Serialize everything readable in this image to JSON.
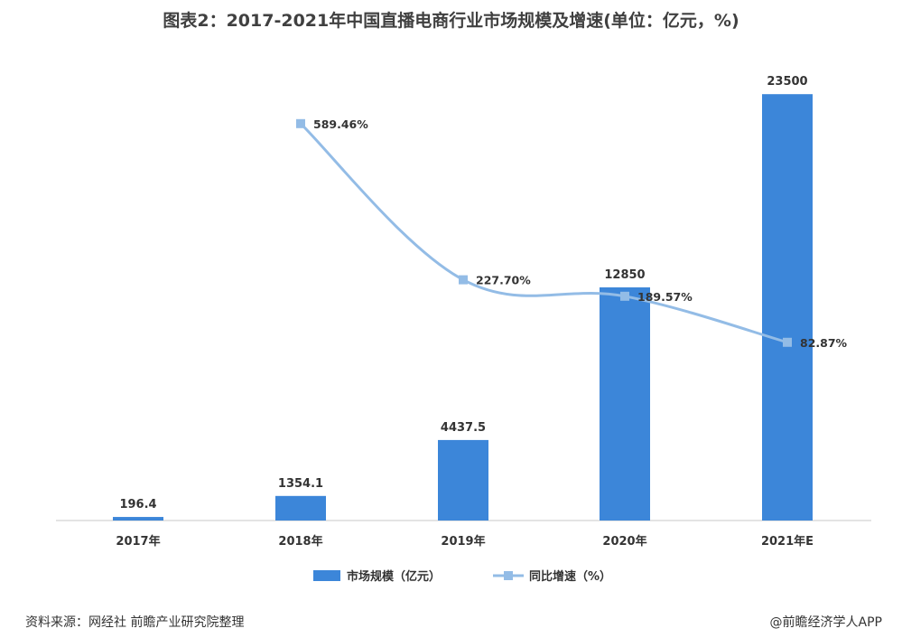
{
  "title": "图表2：2017-2021年中国直播电商行业市场规模及增速(单位：亿元，%)",
  "chart_data": {
    "type": "bar",
    "categories": [
      "2017年",
      "2018年",
      "2019年",
      "2020年",
      "2021年E"
    ],
    "series": [
      {
        "name": "市场规模（亿元）",
        "type": "bar",
        "axis": "left",
        "values": [
          196.4,
          1354.1,
          4437.5,
          12850,
          23500
        ],
        "labels": [
          "196.4",
          "1354.1",
          "4437.5",
          "12850",
          "23500"
        ],
        "color": "#3c86d9"
      },
      {
        "name": "同比增速（%）",
        "type": "line",
        "axis": "right",
        "values": [
          null,
          589.46,
          227.7,
          189.57,
          82.87
        ],
        "labels": [
          "",
          "589.46%",
          "227.70%",
          "189.57%",
          "82.87%"
        ],
        "color": "#93bce6"
      }
    ],
    "ylim_left": [
      0,
      26000
    ],
    "ylim_right": [
      -330,
      700
    ],
    "legend_position": "bottom"
  },
  "footer": {
    "source": "资料来源：网经社 前瞻产业研究院整理",
    "credit": "@前瞻经济学人APP"
  }
}
